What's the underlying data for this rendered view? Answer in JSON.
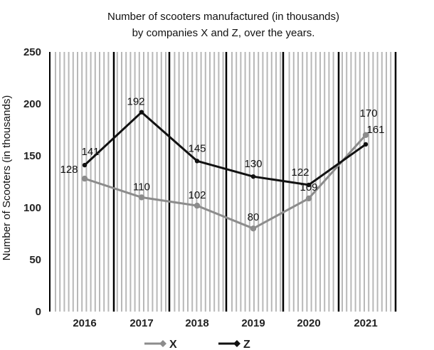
{
  "chart_data": {
    "type": "line",
    "title": "Number of scooters manufactured (in thousands)",
    "subtitle": "by companies X and Z, over the years.",
    "xlabel": "",
    "ylabel": "Number of Scooters (in thousands)",
    "categories": [
      "2016",
      "2017",
      "2018",
      "2019",
      "2020",
      "2021"
    ],
    "yticks": [
      0,
      50,
      100,
      150,
      200,
      250
    ],
    "ylim": [
      0,
      250
    ],
    "grid": "vertical stripes",
    "legend_position": "bottom-center",
    "series": [
      {
        "name": "X",
        "color": "#8c8c8c",
        "values": [
          128,
          110,
          102,
          80,
          109,
          170
        ]
      },
      {
        "name": "Z",
        "color": "#111111",
        "values": [
          141,
          192,
          145,
          130,
          122,
          161
        ]
      }
    ]
  }
}
